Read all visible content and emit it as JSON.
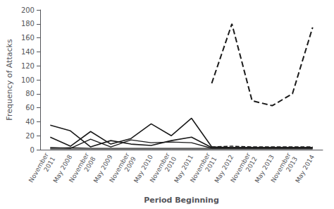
{
  "chart_data": {
    "type": "line",
    "xlabel": "Period Beginning",
    "ylabel": "Frequency of Attacks",
    "categories": [
      "November\n2011",
      "May 2008",
      "November\n2008",
      "May 2009",
      "November\n2009",
      "May 2010",
      "November\n2010",
      "May 2011",
      "November\n2011",
      "May 2012",
      "November\n2012",
      "May 2013",
      "November\n2013",
      "May 2014"
    ],
    "series": [
      {
        "color": "#1a1a1a",
        "line_style": "solid",
        "values": [
          18,
          5,
          26,
          8,
          16,
          37,
          20,
          45,
          4,
          3,
          3,
          3,
          3,
          3
        ]
      },
      {
        "color": "#1a1a1a",
        "line_style": "solid",
        "values": [
          35,
          27,
          4,
          13,
          8,
          6,
          13,
          18,
          3,
          3,
          3,
          3,
          3,
          3
        ]
      },
      {
        "color": "#1a1a1a",
        "line_style": "solid",
        "values": [
          3,
          2,
          15,
          4,
          14,
          10,
          11,
          10,
          2,
          2,
          2,
          2,
          2,
          2
        ]
      },
      {
        "color": "#1a1a1a",
        "line_style": "solid",
        "values": [
          2,
          3,
          2,
          2,
          2,
          2,
          2,
          2,
          2,
          2,
          2,
          2,
          2,
          2
        ]
      },
      {
        "color": "#1a1a1a",
        "line_style": "solid",
        "values": [
          1,
          1,
          1,
          1,
          1,
          1,
          1,
          1,
          1,
          1,
          1,
          1,
          1,
          1
        ]
      },
      {
        "color": "#1a1a1a",
        "line_style": "dashed",
        "values": [
          null,
          null,
          null,
          null,
          null,
          null,
          null,
          null,
          95,
          180,
          70,
          63,
          80,
          175
        ]
      },
      {
        "color": "#1a1a1a",
        "line_style": "dashed",
        "values": [
          null,
          null,
          null,
          null,
          null,
          null,
          null,
          null,
          4,
          5,
          4,
          4,
          4,
          4
        ]
      }
    ],
    "ylim": [
      0,
      200
    ],
    "yticks": [
      0,
      20,
      40,
      60,
      80,
      100,
      120,
      140,
      160,
      180,
      200
    ],
    "grid": false
  }
}
